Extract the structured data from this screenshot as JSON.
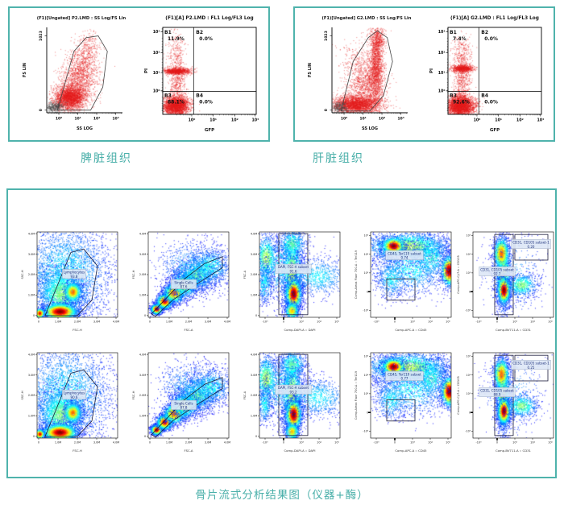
{
  "colors": {
    "panel_border": "#4fb3ac",
    "caption_text": "#49afa9",
    "dot_red": "#e31c1c",
    "gate_line": "#444444",
    "gate_label_text": "#1b2f7a",
    "gate_label_bg": "#dde7f6"
  },
  "chart_data": {
    "type": "scatter",
    "top_panels": [
      {
        "caption": "脾脏组织",
        "scatter_plot": {
          "title": "(F1)[Ungated] P2.LMD : SS Log/FS Lin",
          "xlabel": "SS LOG",
          "ylabel": "FS LIN",
          "x_ticks": [
            "10⁰",
            "10¹",
            "10²",
            "10³"
          ],
          "y_ticks": [
            "1023",
            "0"
          ],
          "cloud": "p2_scatter"
        },
        "quadrant_plot": {
          "title": "(F1)[A] P2.LMD : FL1 Log/FL3 Log",
          "xlabel": "GFP",
          "ylabel": "PI",
          "x_ticks": [
            "10⁰",
            "10¹",
            "10²",
            "10³"
          ],
          "y_ticks": [
            "10³",
            "10²",
            "10¹",
            "10⁰"
          ],
          "cloud": "p2_quad",
          "quadrants": [
            {
              "name": "B1",
              "value": "11.9%"
            },
            {
              "name": "B2",
              "value": "0.0%"
            },
            {
              "name": "B3",
              "value": "88.1%"
            },
            {
              "name": "B4",
              "value": "0.0%"
            }
          ]
        }
      },
      {
        "caption": "肝脏组织",
        "scatter_plot": {
          "title": "(F1)[Ungated] G2.LMD : SS Log/FS Lin",
          "xlabel": "SS LOG",
          "ylabel": "FS LIN",
          "x_ticks": [
            "10⁰",
            "10¹",
            "10²",
            "10³"
          ],
          "y_ticks": [
            "1023",
            "0"
          ],
          "cloud": "g2_scatter"
        },
        "quadrant_plot": {
          "title": "(F1)[A] G2.LMD : FL1 Log/FL3 Log",
          "xlabel": "GFP",
          "ylabel": "PI",
          "x_ticks": [
            "10⁰",
            "10¹",
            "10²",
            "10³"
          ],
          "y_ticks": [
            "10³",
            "10²",
            "10¹",
            "10⁰"
          ],
          "cloud": "g2_quad",
          "quadrants": [
            {
              "name": "B1",
              "value": "7.4%"
            },
            {
              "name": "B2",
              "value": "0.0%"
            },
            {
              "name": "B3",
              "value": "92.6%"
            },
            {
              "name": "B4",
              "value": "0.0%"
            }
          ]
        }
      }
    ],
    "bone_panel": {
      "caption": "骨片流式分析结果图（仪器+酶）",
      "rows": [
        [
          {
            "kind": "lymphocytes",
            "xlabel": "FSC-H",
            "ylabel": "SSC-H",
            "x_ticks": [
              "0",
              "1.0M",
              "2.0M",
              "3.0M",
              "4.0M"
            ],
            "y_ticks": [
              "0",
              "1.0M",
              "2.0M",
              "3.0M",
              "4.0M"
            ],
            "gates": [
              {
                "label": "Lymphocytes",
                "value": "93.8"
              }
            ]
          },
          {
            "kind": "singlecells",
            "xlabel": "FSC-A",
            "ylabel": "FSC-H",
            "x_ticks": [
              "0",
              "1.0M",
              "2.0M",
              "3.0M",
              "4.0M"
            ],
            "y_ticks": [
              "0",
              "1.0M",
              "2.0M",
              "3.0M",
              "4.0M"
            ],
            "gates": [
              {
                "label": "Single Cells",
                "value": "87.6"
              }
            ]
          },
          {
            "kind": "dapi",
            "xlabel": "Comp-DAPI-A :: DAPI",
            "ylabel": "FSC-A",
            "x_ticks": [
              "-10³",
              "0",
              "10³",
              "10⁴",
              "10⁵"
            ],
            "y_ticks": [
              "0",
              "1.0M",
              "2.0M",
              "3.0M",
              "4.0M"
            ],
            "gates": [
              {
                "label": "DAPI, FSC-A subset",
                "value": "91.6"
              }
            ]
          },
          {
            "kind": "cd45",
            "xlabel": "Comp-APC-A :: CD45",
            "ylabel": "Comp-Alexa Fluor 700-A :: Ter119",
            "x_ticks": [
              "-10³",
              "0",
              "10³",
              "10⁴",
              "10⁵"
            ],
            "y_ticks": [
              "10⁵",
              "10⁴",
              "10³",
              "0",
              "-10³"
            ],
            "gates": [
              {
                "label": "CD45, Ter119 subset",
                "value": "0.74"
              }
            ]
          },
          {
            "kind": "cd31",
            "xlabel": "Comp-BV711-A :: CD31",
            "ylabel": "Comp-APC-Cy7-A :: CD105",
            "x_ticks": [
              "-10³",
              "0",
              "10³",
              "10⁴",
              "10⁵"
            ],
            "y_ticks": [
              "10⁵",
              "10⁴",
              "10³",
              "0",
              "-10³"
            ],
            "gates": [
              {
                "label": "CD31, CD105 subset",
                "value": "92.7"
              },
              {
                "label": "CD31, CD105 subset-1",
                "value": "0.20"
              }
            ]
          }
        ],
        [
          {
            "kind": "lymphocytes",
            "xlabel": "FSC-H",
            "ylabel": "SSC-H",
            "x_ticks": [
              "0",
              "1.0M",
              "2.0M",
              "3.0M",
              "4.0M"
            ],
            "y_ticks": [
              "0",
              "1.0M",
              "2.0M",
              "3.0M",
              "4.0M"
            ],
            "gates": [
              {
                "label": "Lymphocytes",
                "value": "90.6"
              }
            ]
          },
          {
            "kind": "singlecells",
            "xlabel": "FSC-A",
            "ylabel": "FSC-H",
            "x_ticks": [
              "0",
              "1.0M",
              "2.0M",
              "3.0M",
              "4.0M"
            ],
            "y_ticks": [
              "0",
              "1.0M",
              "2.0M",
              "3.0M",
              "4.0M"
            ],
            "gates": [
              {
                "label": "Single Cells",
                "value": "87.8"
              }
            ]
          },
          {
            "kind": "dapi",
            "xlabel": "Comp-DAPI-A :: DAPI",
            "ylabel": "FSC-A",
            "x_ticks": [
              "-10³",
              "0",
              "10³",
              "10⁴",
              "10⁵"
            ],
            "y_ticks": [
              "0",
              "1.0M",
              "2.0M",
              "3.0M",
              "4.0M"
            ],
            "gates": [
              {
                "label": "DAPI, FSC-A subset",
                "value": "93.2"
              }
            ]
          },
          {
            "kind": "cd45",
            "xlabel": "Comp-APC-A :: CD45",
            "ylabel": "Comp-Alexa Fluor 700-A :: Ter119",
            "x_ticks": [
              "-10³",
              "0",
              "10³",
              "10⁴",
              "10⁵"
            ],
            "y_ticks": [
              "10⁵",
              "10⁴",
              "10³",
              "0",
              "-10³"
            ],
            "gates": [
              {
                "label": "CD45, Ter119 subset",
                "value": "0.77"
              }
            ]
          },
          {
            "kind": "cd31",
            "xlabel": "Comp-BV711-A :: CD31",
            "ylabel": "Comp-APC-Cy7-A :: CD105",
            "x_ticks": [
              "-10³",
              "0",
              "10³",
              "10⁴",
              "10⁵"
            ],
            "y_ticks": [
              "10⁵",
              "10⁴",
              "10³",
              "0",
              "-10³"
            ],
            "gates": [
              {
                "label": "CD31, CD105 subset",
                "value": "88.9"
              },
              {
                "label": "CD31, CD105 subset-1",
                "value": "0.25"
              }
            ]
          }
        ]
      ]
    }
  }
}
